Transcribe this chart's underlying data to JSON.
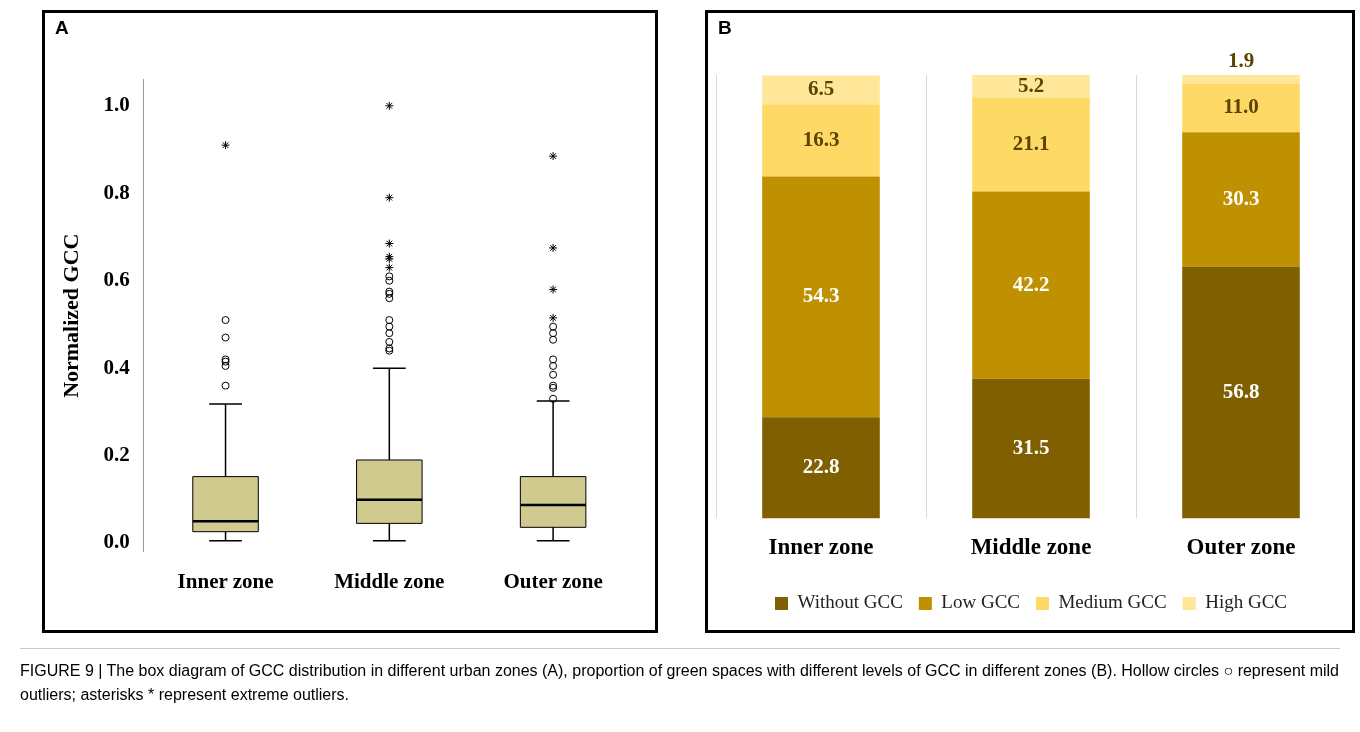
{
  "chart_data": [
    {
      "type": "box",
      "title": "A",
      "ylabel": "Normalized GCC",
      "categories": [
        "Inner zone",
        "Middle zone",
        "Outer zone"
      ],
      "ylim": [
        -0.02,
        1.06
      ],
      "yticks": [
        {
          "value": 0,
          "label": "0.0"
        },
        0.2,
        0.4,
        0.6,
        0.8,
        {
          "value": 1,
          "label": "1.0"
        }
      ],
      "grid": false,
      "series": [
        {
          "type": "box",
          "color": "#d0ca8e",
          "marker": "circle",
          "boxes": [
            {
              "low": 0.005,
              "q1": 0.026,
              "median": 0.05,
              "q3": 0.152,
              "high": 0.318,
              "outliers": [
                0.36,
                0.405,
                0.415,
                0.42,
                0.47,
                0.51
              ]
            },
            {
              "low": 0.005,
              "q1": 0.045,
              "median": 0.099,
              "q3": 0.19,
              "high": 0.4,
              "outliers": [
                0.44,
                0.445,
                0.46,
                0.48,
                0.495,
                0.51,
                0.56,
                0.57,
                0.575,
                0.6,
                0.61
              ]
            },
            {
              "low": 0.005,
              "q1": 0.036,
              "median": 0.087,
              "q3": 0.152,
              "high": 0.325,
              "outliers": [
                0.33,
                0.355,
                0.36,
                0.385,
                0.405,
                0.42,
                0.465,
                0.48,
                0.495
              ]
            }
          ]
        },
        {
          "type": "scatter",
          "marker": "cross",
          "color": "#000000",
          "x": [
            "Inner zone",
            "Middle zone",
            "Middle zone",
            "Middle zone",
            "Middle zone",
            "Middle zone",
            "Middle zone",
            "Outer zone",
            "Outer zone",
            "Outer zone",
            "Outer zone"
          ],
          "values": [
            0.91,
            1.0,
            0.79,
            0.685,
            0.655,
            0.65,
            0.63,
            0.885,
            0.675,
            0.58,
            0.515
          ]
        }
      ]
    },
    {
      "type": "bar",
      "title": "B",
      "stacked": true,
      "legend": "bottom",
      "grid": "x",
      "categories": [
        "Inner zone",
        "Middle zone",
        "Outer zone"
      ],
      "series": [
        {
          "name": "Without GCC",
          "color": "#7f5f00",
          "values": [
            22.8,
            31.5,
            56.8
          ],
          "value_labels": [
            "22.8",
            "31.5",
            "56.8"
          ]
        },
        {
          "name": "Low GCC",
          "color": "#bf9000",
          "values": [
            54.3,
            42.2,
            30.3
          ],
          "value_labels": [
            "54.3",
            "42.2",
            "30.3"
          ]
        },
        {
          "name": "Medium GCC",
          "color": "#ffd966",
          "values": [
            16.3,
            21.1,
            11.0
          ],
          "value_labels": [
            "16.3",
            "21.1",
            "11.0"
          ]
        },
        {
          "name": "High GCC",
          "color": "#ffe699",
          "values": [
            6.5,
            5.2,
            1.9
          ],
          "value_labels": [
            "6.5",
            "5.2",
            "1.9"
          ]
        }
      ],
      "annotations": [
        "FIGURE 9 | The box diagram of GCC distribution in different urban zones (A), proportion of green spaces with different levels of GCC in different zones (B). Hollow circles ○ represent mild outliers; asterisks * represent extreme outliers."
      ]
    }
  ]
}
